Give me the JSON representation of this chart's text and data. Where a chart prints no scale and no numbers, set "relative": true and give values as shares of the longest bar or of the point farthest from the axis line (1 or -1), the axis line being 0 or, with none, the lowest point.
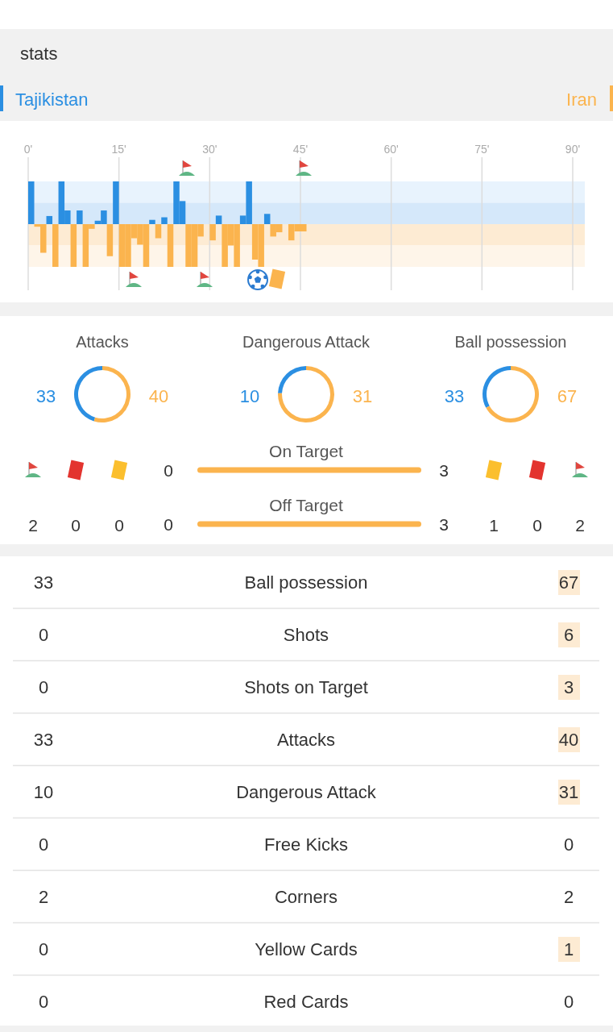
{
  "chart_data": [
    {
      "type": "bar",
      "title": "stats",
      "stacked": true,
      "relative": true,
      "legend": "top",
      "grid": "x",
      "tick_labels": "x",
      "x": [
        0,
        1,
        2,
        3,
        4,
        5,
        6,
        7,
        8,
        9,
        10,
        11,
        12,
        13,
        14,
        15,
        16,
        17,
        18,
        19,
        20,
        21,
        22,
        23,
        24,
        25,
        26,
        27,
        28,
        29,
        30,
        31,
        32,
        33,
        34,
        35,
        36,
        37,
        38,
        39,
        40,
        41,
        42,
        43,
        44,
        45
      ],
      "series": [
        {
          "name": "Tajikistan",
          "color": "#2b8fe2",
          "values": [
            1,
            null,
            null,
            0.19,
            null,
            1,
            0.32,
            null,
            0.32,
            null,
            null,
            0.08,
            0.32,
            null,
            1,
            null,
            null,
            null,
            null,
            null,
            0.1,
            null,
            0.16,
            null,
            1,
            0.54,
            null,
            null,
            null,
            null,
            null,
            0.2,
            null,
            null,
            null,
            0.2,
            1,
            null,
            null,
            0.24,
            null,
            null,
            null,
            null,
            null,
            null
          ]
        },
        {
          "name": "Iran",
          "color": "#fbb44e",
          "values": [
            null,
            -0.06,
            -0.67,
            null,
            -1,
            null,
            null,
            -1,
            null,
            -1,
            -0.11,
            null,
            null,
            -0.75,
            null,
            -1,
            -1,
            -0.33,
            -0.48,
            -1,
            null,
            -0.33,
            null,
            -1,
            null,
            null,
            -1,
            -1,
            -0.29,
            null,
            -0.38,
            null,
            -1,
            -0.5,
            -1,
            null,
            null,
            -0.83,
            -1,
            null,
            -0.29,
            -0.19,
            null,
            -0.38,
            -0.17,
            -0.17
          ]
        }
      ],
      "xlim": [
        0,
        92
      ],
      "xticks": [
        {
          "value": 0,
          "label": "0'"
        },
        {
          "value": 15,
          "label": "15'"
        },
        {
          "value": 30,
          "label": "30'"
        },
        {
          "value": 45,
          "label": "45'"
        },
        {
          "value": 60,
          "label": "60'"
        },
        {
          "value": 75,
          "label": "75'"
        },
        {
          "value": 90,
          "label": "90'"
        }
      ],
      "bands": [
        {
          "axis": "y",
          "from": 0.5,
          "to": 1,
          "color": "#e8f3fd"
        },
        {
          "axis": "y",
          "from": 0,
          "to": 0.5,
          "color": "#d5e8fa"
        },
        {
          "axis": "y",
          "from": -0.5,
          "to": 0,
          "color": "#fdebd3"
        },
        {
          "axis": "y",
          "from": -1,
          "to": -0.5,
          "color": "#fef5e9"
        }
      ]
    },
    {
      "type": "donut",
      "title": "Attacks",
      "categories": [
        null,
        null
      ],
      "values": [
        33,
        40
      ],
      "colors": [
        "#2b8fe2",
        "#fbb44e"
      ],
      "data_labels": true
    },
    {
      "type": "donut",
      "title": "Dangerous Attack",
      "categories": [
        null,
        null
      ],
      "values": [
        10,
        31
      ],
      "colors": [
        "#2b8fe2",
        "#fbb44e"
      ],
      "data_labels": true
    },
    {
      "type": "donut",
      "title": "Ball possession",
      "categories": [
        null,
        null
      ],
      "values": [
        33,
        67
      ],
      "colors": [
        "#2b8fe2",
        "#fbb44e"
      ],
      "data_labels": true
    },
    {
      "type": "bar",
      "orientation": "horizontal",
      "stacked": true,
      "data_labels": true,
      "categories": [
        "On Target",
        "Off Target"
      ],
      "series": [
        {
          "color": "#2b8fe2",
          "values": [
            0,
            0
          ]
        },
        {
          "color": "#fbb44e",
          "values": [
            3,
            3
          ]
        }
      ]
    },
    {
      "type": "other",
      "annotations": [
        "2",
        "0",
        "0",
        "1",
        "0",
        "2"
      ]
    },
    {
      "type": "other",
      "data_labels": true,
      "categories": [
        "Ball possession",
        "Shots",
        "Shots on Target",
        "Attacks",
        "Dangerous Attack",
        "Free Kicks",
        "Corners",
        "Yellow Cards",
        "Red Cards"
      ],
      "series": [
        {
          "values": [
            33,
            0,
            0,
            33,
            10,
            0,
            2,
            0,
            0
          ]
        },
        {
          "values": [
            67,
            6,
            3,
            40,
            31,
            0,
            2,
            1,
            0
          ]
        }
      ]
    }
  ]
}
